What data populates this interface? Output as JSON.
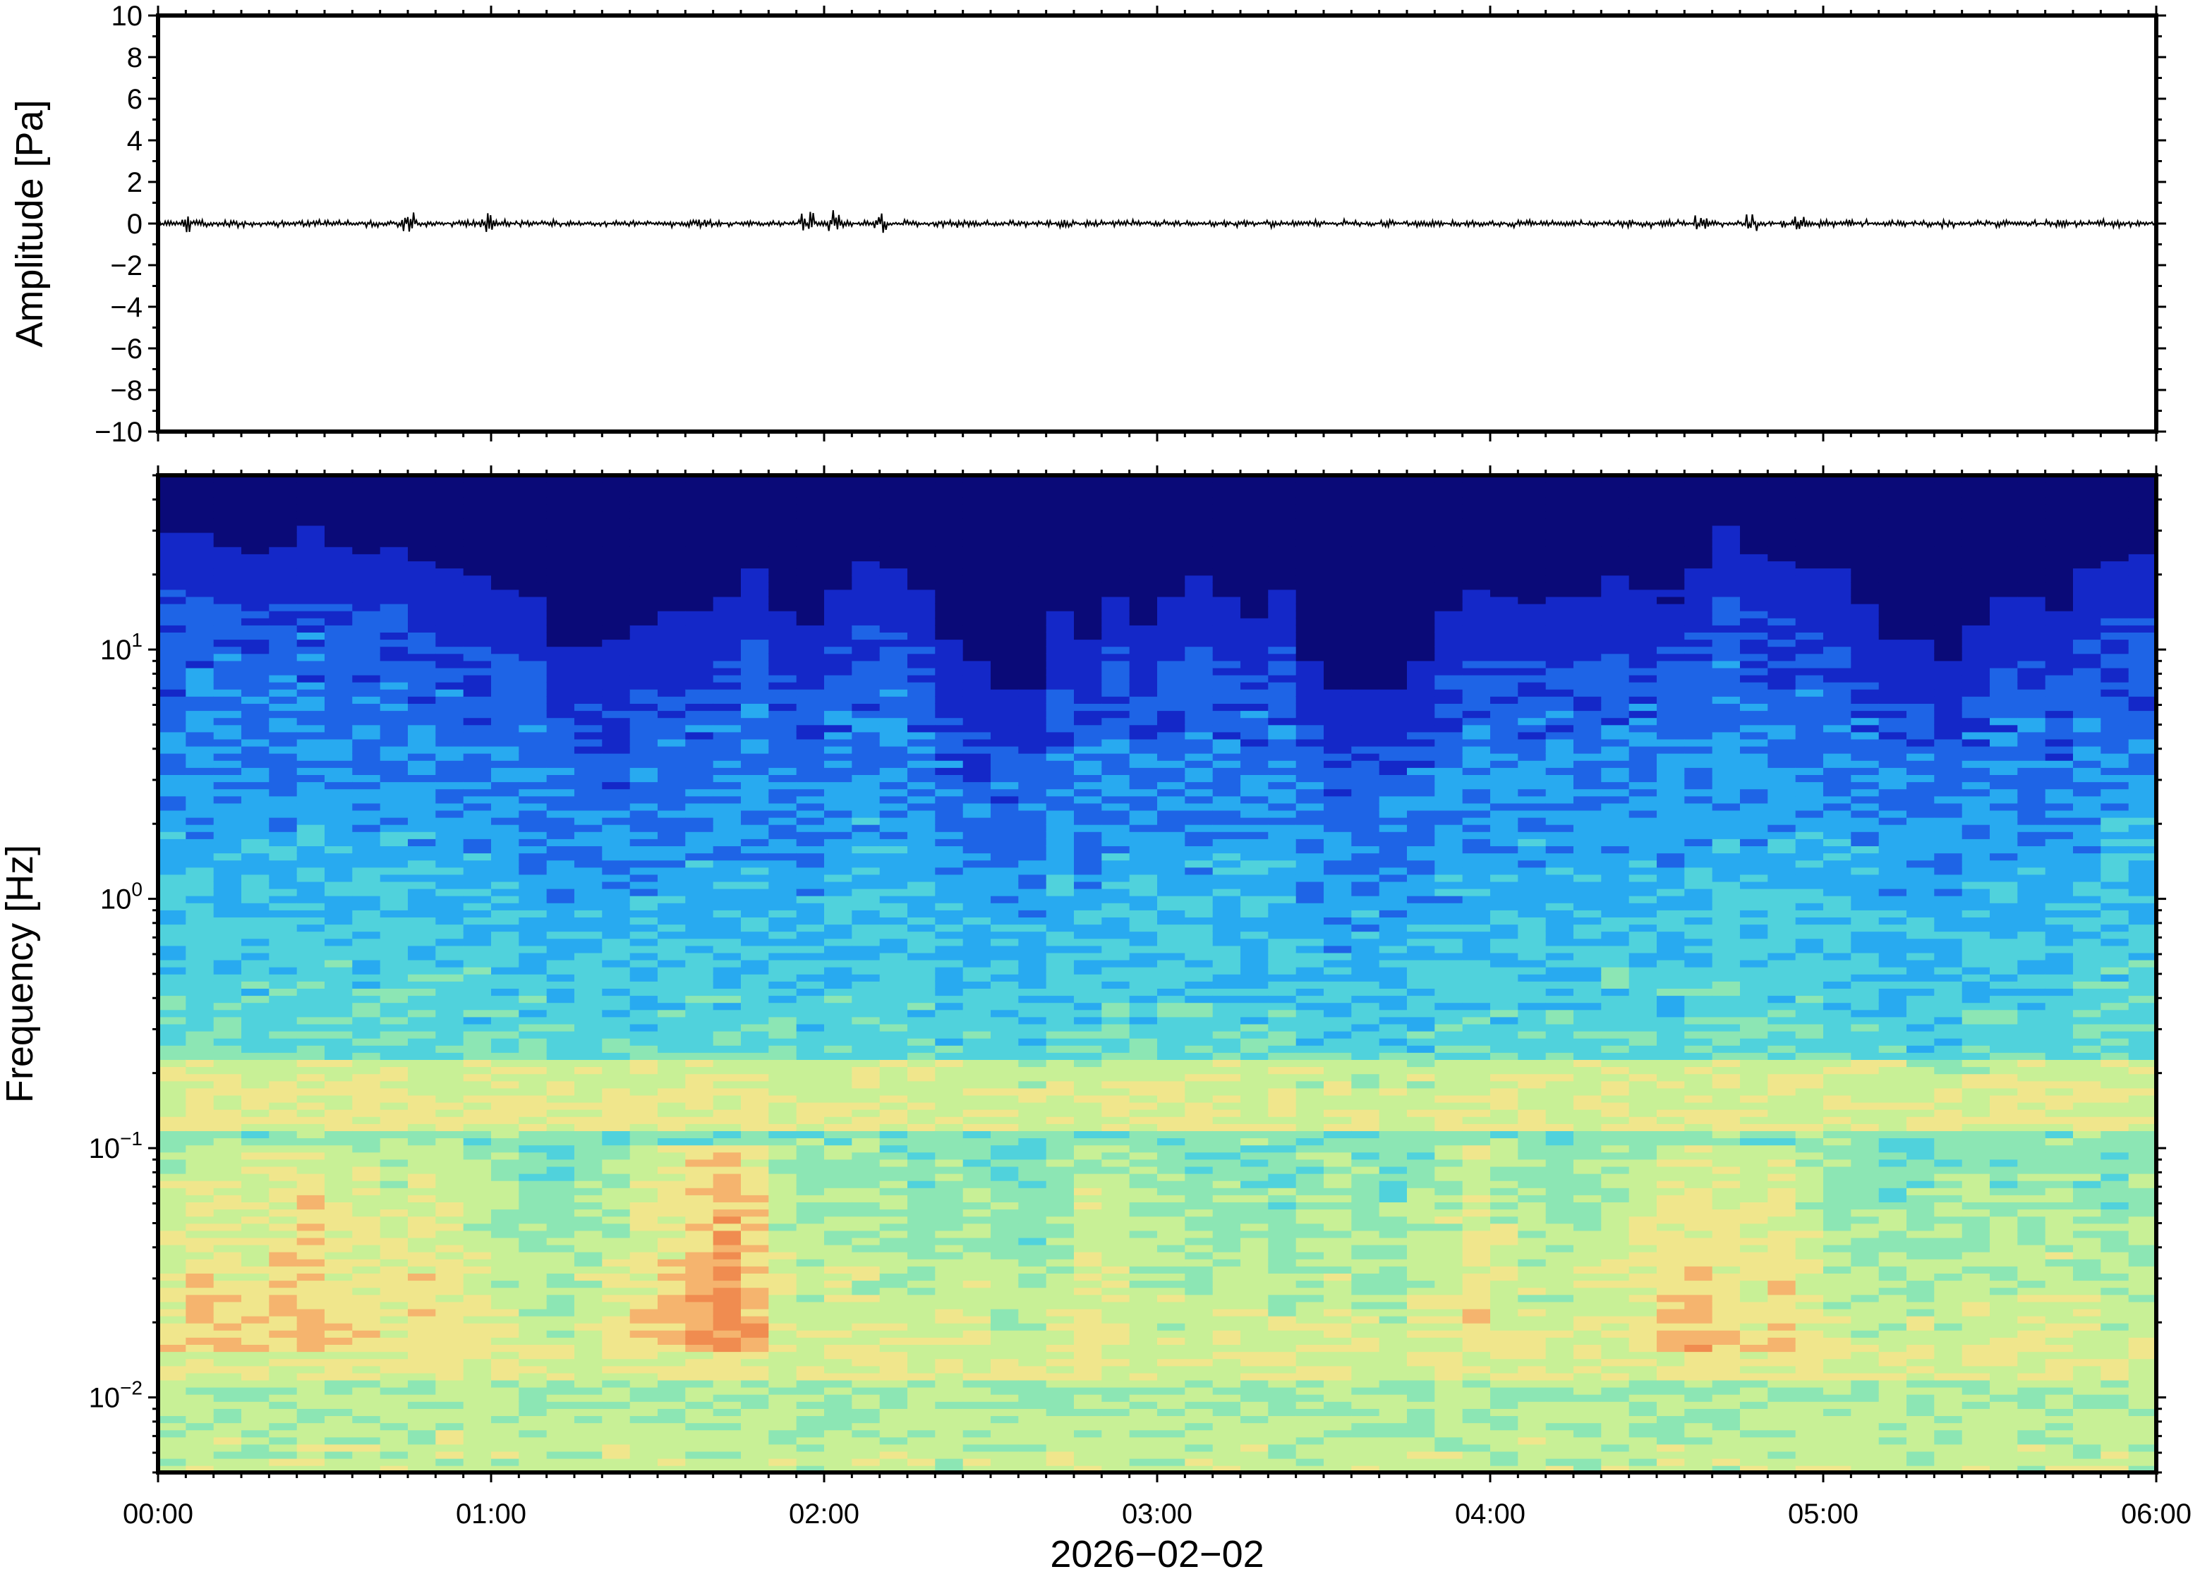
{
  "chart_data": [
    {
      "type": "line",
      "panel": "waveform",
      "ylabel": "Amplitude [Pa]",
      "ylim": [
        -10,
        10
      ],
      "yticks": [
        "10",
        "8",
        "6",
        "4",
        "2",
        "0",
        "−2",
        "−4",
        "−6",
        "−8",
        "−10"
      ],
      "xlim": [
        "00:00",
        "06:00"
      ],
      "trace": {
        "baseline": 0,
        "typical_amplitude": 0.15,
        "peak_amplitude": 0.7,
        "bursts_at_minutes": [
          5,
          45,
          60,
          117,
          122,
          130,
          278,
          287,
          296
        ],
        "color": "#000000"
      }
    },
    {
      "type": "heatmap",
      "panel": "spectrogram",
      "ylabel": "Frequency [Hz]",
      "yscale": "log",
      "ylim_hz": [
        0.005,
        50
      ],
      "yticks": [
        {
          "base": "10",
          "exp": "1",
          "value": 10
        },
        {
          "base": "10",
          "exp": "0",
          "value": 1
        },
        {
          "base": "10",
          "exp": "−1",
          "value": 0.1
        },
        {
          "base": "10",
          "exp": "−2",
          "value": 0.01
        }
      ],
      "xlabel": "2026−02−02",
      "xticks": [
        "00:00",
        "01:00",
        "02:00",
        "03:00",
        "04:00",
        "05:00",
        "06:00"
      ],
      "colormap": [
        "#0a0a78",
        "#1428c8",
        "#1e64e6",
        "#28aaf0",
        "#50d2dc",
        "#8ce6b4",
        "#c8f096",
        "#f0e68c",
        "#f5b46e",
        "#f08c50"
      ],
      "time_columns_min": 5,
      "high_frequency_cutoff_hz": [
        17,
        17,
        15,
        14,
        15,
        18,
        15,
        14,
        15,
        13,
        12,
        11,
        10,
        9,
        6,
        6,
        6,
        7,
        8,
        8,
        9,
        12,
        8,
        7,
        10,
        13,
        12,
        10,
        6,
        5,
        4,
        4,
        8,
        6,
        10,
        7,
        9,
        11,
        9,
        8,
        10,
        5,
        4,
        4,
        4,
        5,
        8,
        10,
        9,
        9,
        9,
        9,
        11,
        10,
        10,
        12,
        18,
        14,
        13,
        12,
        12,
        9,
        6,
        6,
        5,
        7,
        9,
        9,
        8,
        12,
        13,
        14
      ],
      "microbarom_band_hz": [
        0.12,
        0.22
      ],
      "low_frequency_energy": [
        0.55,
        0.62,
        0.6,
        0.58,
        0.62,
        0.66,
        0.6,
        0.58,
        0.56,
        0.6,
        0.58,
        0.55,
        0.5,
        0.48,
        0.45,
        0.5,
        0.55,
        0.6,
        0.65,
        0.72,
        0.78,
        0.7,
        0.55,
        0.5,
        0.52,
        0.5,
        0.48,
        0.45,
        0.5,
        0.52,
        0.48,
        0.45,
        0.5,
        0.58,
        0.55,
        0.5,
        0.48,
        0.45,
        0.5,
        0.48,
        0.46,
        0.5,
        0.55,
        0.5,
        0.48,
        0.52,
        0.55,
        0.6,
        0.55,
        0.5,
        0.48,
        0.52,
        0.55,
        0.58,
        0.62,
        0.66,
        0.6,
        0.58,
        0.62,
        0.55,
        0.5,
        0.48,
        0.46,
        0.48,
        0.5,
        0.52,
        0.48,
        0.5,
        0.52,
        0.48,
        0.45,
        0.5
      ]
    }
  ]
}
